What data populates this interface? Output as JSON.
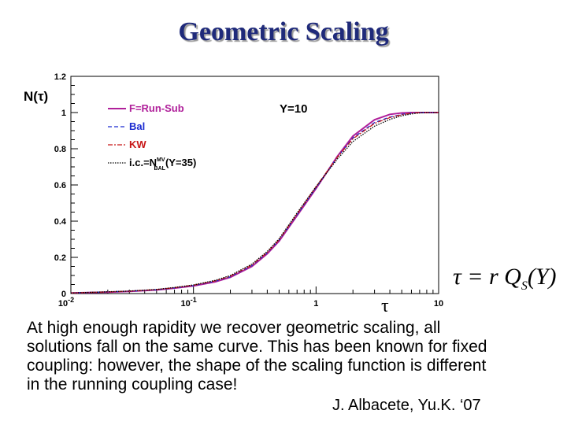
{
  "slide": {
    "title": "Geometric Scaling",
    "formula": {
      "lhs": "τ = r Q",
      "sub": "S",
      "rhs": "(Y)"
    },
    "text_lines": [
      "At high enough rapidity we recover geometric scaling, all",
      "solutions fall on the same curve. This has been known for fixed",
      "coupling: however, the shape of the scaling function is different",
      "in the running coupling case!"
    ],
    "credit": "J. Albacete, Yu.K. ‘07"
  },
  "chart_data": {
    "type": "line",
    "title": "",
    "xlabel": "τ",
    "ylabel": "N(τ)",
    "annotation": "Y=10",
    "x_scale": "log",
    "xlim": [
      0.01,
      10
    ],
    "ylim": [
      0,
      1.2
    ],
    "x_ticks": [
      {
        "value": 0.01,
        "base": "10",
        "exp": "-2"
      },
      {
        "value": 0.1,
        "base": "10",
        "exp": "-1"
      },
      {
        "value": 1,
        "base": "1",
        "exp": ""
      },
      {
        "value": 10,
        "base": "10",
        "exp": ""
      }
    ],
    "y_ticks": [
      {
        "value": 0,
        "label": "0"
      },
      {
        "value": 0.2,
        "label": "0.2"
      },
      {
        "value": 0.4,
        "label": "0.4"
      },
      {
        "value": 0.6,
        "label": "0.6"
      },
      {
        "value": 0.8,
        "label": "0.8"
      },
      {
        "value": 1,
        "label": "1"
      },
      {
        "value": 1.2,
        "label": "1.2"
      }
    ],
    "legend": {
      "placement": "top-left",
      "entries": [
        {
          "text": "F=Run-Sub",
          "sup": "",
          "sub": "",
          "tail": "",
          "color": "#b0209a",
          "dash": "solid"
        },
        {
          "text": "Bal",
          "sup": "",
          "sub": "",
          "tail": "",
          "color": "#1a2ad0",
          "dash": "dashed"
        },
        {
          "text": "KW",
          "sup": "",
          "sub": "",
          "tail": "",
          "color": "#c81818",
          "dash": "dashdot"
        },
        {
          "text": "i.c.=N",
          "sup": "MV",
          "sub": "BAL",
          "tail": "(Y=35)",
          "color": "#000000",
          "dash": "dotted"
        }
      ]
    },
    "series": [
      {
        "legend_index": 0,
        "color": "#b0209a",
        "dash": "solid",
        "x": [
          0.01,
          0.02,
          0.03,
          0.05,
          0.07,
          0.1,
          0.15,
          0.2,
          0.3,
          0.4,
          0.5,
          0.7,
          1.0,
          1.5,
          2.0,
          3.0,
          4.0,
          5.0,
          6.0,
          7.0,
          8.0,
          10.0
        ],
        "y": [
          0.003,
          0.008,
          0.012,
          0.02,
          0.03,
          0.042,
          0.065,
          0.09,
          0.15,
          0.22,
          0.29,
          0.43,
          0.58,
          0.76,
          0.87,
          0.96,
          0.99,
          0.998,
          1.0,
          1.0,
          1.0,
          1.0
        ]
      },
      {
        "legend_index": 1,
        "color": "#1a2ad0",
        "dash": "dashed",
        "x": [
          0.01,
          0.02,
          0.03,
          0.05,
          0.07,
          0.1,
          0.15,
          0.2,
          0.3,
          0.4,
          0.5,
          0.7,
          1.0,
          1.5,
          2.0,
          3.0,
          4.0,
          5.0,
          6.0,
          7.0,
          8.0,
          10.0
        ],
        "y": [
          0.003,
          0.009,
          0.013,
          0.021,
          0.031,
          0.044,
          0.068,
          0.093,
          0.155,
          0.225,
          0.295,
          0.435,
          0.585,
          0.755,
          0.86,
          0.945,
          0.975,
          0.99,
          0.997,
          1.0,
          1.0,
          1.0
        ]
      },
      {
        "legend_index": 2,
        "color": "#c81818",
        "dash": "dashdot",
        "x": [
          0.01,
          0.02,
          0.03,
          0.05,
          0.07,
          0.1,
          0.15,
          0.2,
          0.3,
          0.4,
          0.5,
          0.7,
          1.0,
          1.5,
          2.0,
          3.0,
          4.0,
          5.0,
          6.0,
          7.0,
          8.0,
          10.0
        ],
        "y": [
          0.003,
          0.009,
          0.013,
          0.022,
          0.032,
          0.046,
          0.07,
          0.096,
          0.158,
          0.228,
          0.298,
          0.44,
          0.59,
          0.755,
          0.855,
          0.94,
          0.972,
          0.988,
          0.996,
          1.0,
          1.0,
          1.0
        ]
      },
      {
        "legend_index": 3,
        "color": "#000000",
        "dash": "dotted",
        "x": [
          0.01,
          0.02,
          0.03,
          0.05,
          0.07,
          0.1,
          0.15,
          0.2,
          0.3,
          0.4,
          0.5,
          0.7,
          1.0,
          1.5,
          2.0,
          3.0,
          4.0,
          5.0,
          6.0,
          7.0,
          8.0,
          10.0
        ],
        "y": [
          0.003,
          0.01,
          0.014,
          0.023,
          0.034,
          0.048,
          0.073,
          0.1,
          0.163,
          0.233,
          0.303,
          0.445,
          0.59,
          0.745,
          0.84,
          0.925,
          0.962,
          0.982,
          0.992,
          0.998,
          1.0,
          1.0
        ]
      }
    ]
  }
}
